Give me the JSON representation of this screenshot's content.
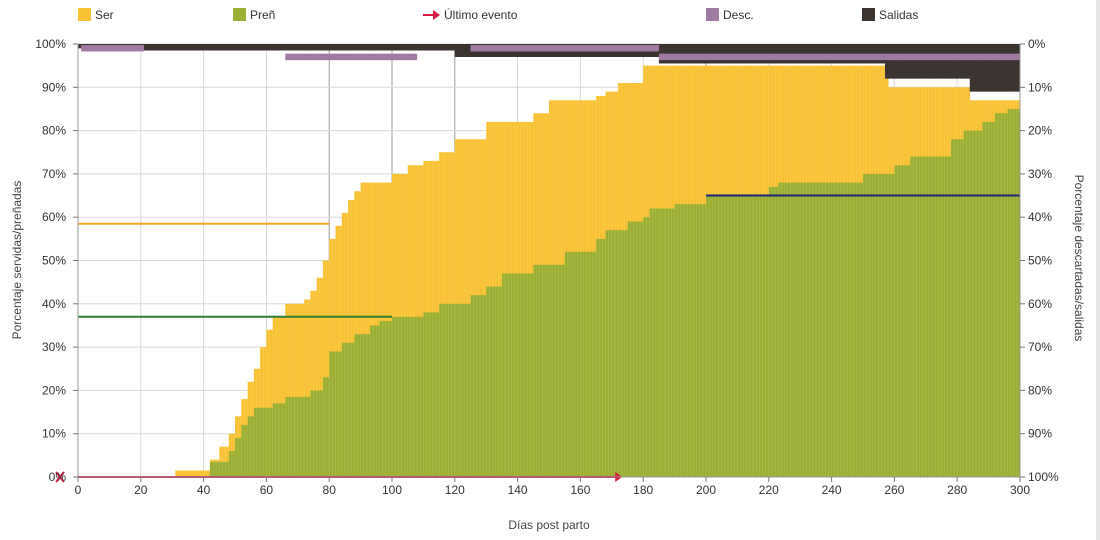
{
  "chart_data": {
    "type": "area",
    "xlabel": "Días post parto",
    "ylabel_left": "Porcentaje servidas/preñadas",
    "ylabel_right": "Porcentaje descartadas/salidas",
    "xlim": [
      0,
      300
    ],
    "ylim_left": [
      0,
      100
    ],
    "ylim_right": [
      100,
      0
    ],
    "x_ticks": [
      0,
      20,
      40,
      60,
      80,
      100,
      120,
      140,
      160,
      180,
      200,
      220,
      240,
      260,
      280,
      300
    ],
    "y_ticks_left": [
      "0%",
      "10%",
      "20%",
      "30%",
      "40%",
      "50%",
      "60%",
      "70%",
      "80%",
      "90%",
      "100%"
    ],
    "y_ticks_right": [
      "100%",
      "90%",
      "80%",
      "70%",
      "60%",
      "50%",
      "40%",
      "30%",
      "20%",
      "10%",
      "0%"
    ],
    "legend": [
      {
        "key": "ser",
        "label": "Ser",
        "color": "#f9c234",
        "marker": "square"
      },
      {
        "key": "pren",
        "label": "Preñ",
        "color": "#9caf33",
        "marker": "square"
      },
      {
        "key": "ultimo",
        "label": "Último evento",
        "color": "#d81b42",
        "marker": "arrow"
      },
      {
        "key": "desc",
        "label": "Desc.",
        "color": "#a07aa3",
        "marker": "square"
      },
      {
        "key": "salidas",
        "label": "Salidas",
        "color": "#3b3430",
        "marker": "square"
      }
    ],
    "series": [
      {
        "name": "Ser",
        "color": "#f9c234",
        "points": [
          [
            0,
            0
          ],
          [
            31,
            1.5
          ],
          [
            42,
            4
          ],
          [
            45,
            7
          ],
          [
            48,
            10
          ],
          [
            50,
            14
          ],
          [
            52,
            18
          ],
          [
            54,
            22
          ],
          [
            56,
            25
          ],
          [
            58,
            30
          ],
          [
            60,
            34
          ],
          [
            62,
            37
          ],
          [
            66,
            40
          ],
          [
            72,
            41
          ],
          [
            74,
            43
          ],
          [
            76,
            46
          ],
          [
            78,
            50
          ],
          [
            80,
            55
          ],
          [
            82,
            58
          ],
          [
            84,
            61
          ],
          [
            86,
            64
          ],
          [
            88,
            66
          ],
          [
            90,
            68
          ],
          [
            100,
            70
          ],
          [
            105,
            72
          ],
          [
            110,
            73
          ],
          [
            115,
            75
          ],
          [
            120,
            78
          ],
          [
            130,
            82
          ],
          [
            145,
            84
          ],
          [
            150,
            87
          ],
          [
            165,
            88
          ],
          [
            168,
            89
          ],
          [
            172,
            91
          ],
          [
            180,
            95
          ],
          [
            200,
            95
          ],
          [
            258,
            90
          ],
          [
            284,
            87
          ],
          [
            297,
            87
          ],
          [
            300,
            87
          ]
        ]
      },
      {
        "name": "Preñ",
        "color": "#9caf33",
        "points": [
          [
            0,
            0
          ],
          [
            42,
            3.5
          ],
          [
            48,
            6
          ],
          [
            50,
            9
          ],
          [
            52,
            12
          ],
          [
            54,
            14
          ],
          [
            56,
            16
          ],
          [
            62,
            17
          ],
          [
            66,
            18.5
          ],
          [
            74,
            20
          ],
          [
            78,
            23
          ],
          [
            80,
            29
          ],
          [
            84,
            31
          ],
          [
            88,
            33
          ],
          [
            93,
            35
          ],
          [
            96,
            36
          ],
          [
            100,
            37
          ],
          [
            110,
            38
          ],
          [
            115,
            40
          ],
          [
            125,
            42
          ],
          [
            130,
            44
          ],
          [
            135,
            47
          ],
          [
            145,
            49
          ],
          [
            155,
            52
          ],
          [
            165,
            55
          ],
          [
            168,
            57
          ],
          [
            175,
            59
          ],
          [
            180,
            60
          ],
          [
            182,
            62
          ],
          [
            190,
            63
          ],
          [
            200,
            65
          ],
          [
            220,
            67
          ],
          [
            223,
            68
          ],
          [
            250,
            70
          ],
          [
            260,
            72
          ],
          [
            265,
            74
          ],
          [
            278,
            78
          ],
          [
            282,
            80
          ],
          [
            288,
            82
          ],
          [
            292,
            84
          ],
          [
            296,
            85
          ],
          [
            300,
            87
          ]
        ]
      },
      {
        "name": "Desc.",
        "color": "#a07aa3",
        "segments": [
          [
            1,
            21,
            1.5
          ],
          [
            66,
            108,
            3.5
          ],
          [
            125,
            185,
            1.5
          ],
          [
            185,
            300,
            3.5
          ]
        ]
      },
      {
        "name": "Salidas",
        "color": "#3b3430",
        "steps": [
          [
            0,
            1
          ],
          [
            21,
            1.5
          ],
          [
            66,
            1.5
          ],
          [
            120,
            3
          ],
          [
            125,
            3
          ],
          [
            185,
            4.5
          ],
          [
            254,
            4.5
          ],
          [
            257,
            8
          ],
          [
            260,
            8
          ],
          [
            284,
            11
          ],
          [
            295,
            11
          ],
          [
            300,
            11
          ]
        ]
      }
    ],
    "reference_lines": [
      {
        "color": "#f5a623",
        "y": 58.5,
        "x_from": 0,
        "x_to": 80
      },
      {
        "color": "#2e7d32",
        "y": 37,
        "x_from": 0,
        "x_to": 100
      },
      {
        "color": "#1a237e",
        "y": 65,
        "x_from": 200,
        "x_to": 300
      }
    ],
    "event_marker": {
      "label": "Último evento",
      "color": "#d81b42",
      "x_from": 0,
      "x_to": 173,
      "y": 0
    },
    "grid": true
  }
}
